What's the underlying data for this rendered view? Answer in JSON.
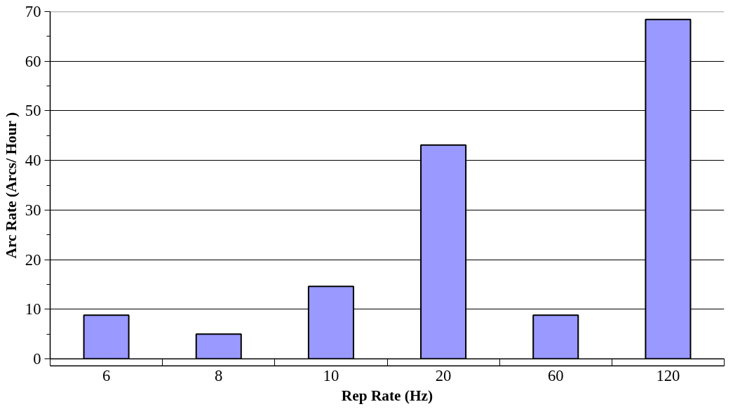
{
  "chart_data": {
    "type": "bar",
    "xlabel": "Rep Rate (Hz)",
    "ylabel": "Arc Rate (Arcs/ Hour )",
    "categories": [
      "6",
      "8",
      "10",
      "20",
      "60",
      "120"
    ],
    "values": [
      8.8,
      5.0,
      14.6,
      43.1,
      8.8,
      68.4
    ],
    "color": "#9999ff",
    "ylim": [
      0,
      70
    ],
    "yticks": [
      0,
      10,
      20,
      30,
      40,
      50,
      60,
      70
    ],
    "grid": "y"
  }
}
